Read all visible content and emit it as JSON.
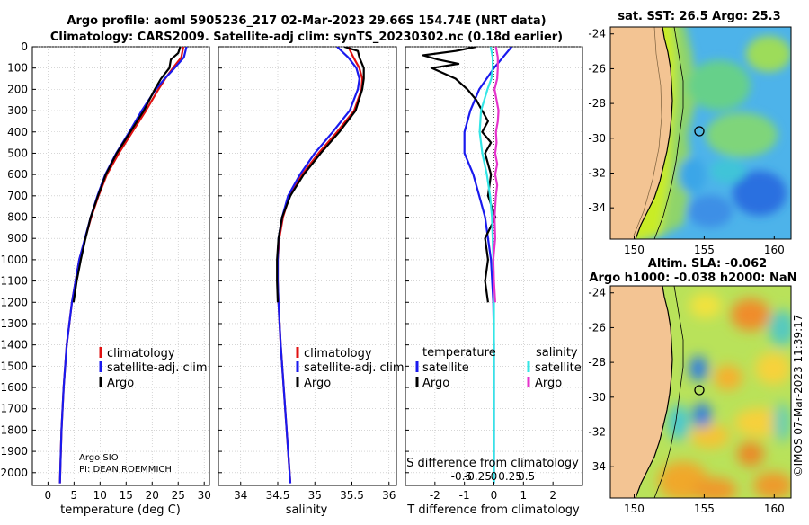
{
  "title": {
    "line1": "Argo profile: aoml 5905236_217 02-Mar-2023 29.66S 154.74E (NRT data)",
    "line2": "Climatology: CARS2009. Satellite-adj clim: synTS_20230302.nc (0.18d earlier)"
  },
  "credits": {
    "argo_center": "Argo SIO",
    "pi": "PI: DEAN ROEMMICH",
    "copyright": "©IMOS 07-Mar-2023 11:39:17"
  },
  "colors": {
    "climatology": "#e01010",
    "satellite_adj": "#1a1aee",
    "argo": "#000000",
    "sat_salinity": "#33e6e6",
    "argo_salinity": "#e633cc",
    "land": "#f3c493"
  },
  "chart_data": [
    {
      "type": "line",
      "name": "temperature",
      "xlabel": "temperature (deg C)",
      "ylabel": "",
      "xlim": [
        -3,
        31
      ],
      "ylim": [
        2060,
        0
      ],
      "xticks": [
        "0",
        "5",
        "10",
        "15",
        "20",
        "25",
        "30"
      ],
      "xtick_values": [
        0,
        5,
        10,
        15,
        20,
        25,
        30
      ],
      "yticks": [
        "0",
        "100",
        "200",
        "300",
        "400",
        "500",
        "600",
        "700",
        "800",
        "900",
        "1000",
        "1100",
        "1200",
        "1300",
        "1400",
        "1500",
        "1600",
        "1700",
        "1800",
        "1900",
        "2000"
      ],
      "ytick_values": [
        0,
        100,
        200,
        300,
        400,
        500,
        600,
        700,
        800,
        900,
        1000,
        1100,
        1200,
        1300,
        1400,
        1500,
        1600,
        1700,
        1800,
        1900,
        2000
      ],
      "legend": [
        "climatology",
        "satellite-adj. clim.",
        "Argo"
      ],
      "series": [
        {
          "name": "climatology",
          "depth": [
            0,
            50,
            100,
            150,
            200,
            300,
            400,
            500,
            600,
            700,
            800,
            1000,
            1200,
            1400,
            1600,
            1800,
            2000,
            2050
          ],
          "values": [
            26.0,
            25.6,
            24.0,
            22.5,
            21.2,
            18.8,
            16.2,
            13.6,
            11.3,
            9.7,
            8.3,
            6.0,
            4.6,
            3.6,
            3.0,
            2.6,
            2.35,
            2.3
          ]
        },
        {
          "name": "satellite-adj. clim.",
          "depth": [
            0,
            50,
            100,
            150,
            200,
            300,
            400,
            500,
            600,
            700,
            800,
            1000,
            1200,
            1400,
            1600,
            1800,
            2000,
            2050
          ],
          "values": [
            26.6,
            26.1,
            24.3,
            22.4,
            20.7,
            18.0,
            15.6,
            13.1,
            11.0,
            9.5,
            8.2,
            6.0,
            4.6,
            3.6,
            3.0,
            2.6,
            2.35,
            2.3
          ]
        },
        {
          "name": "Argo",
          "depth": [
            0,
            30,
            60,
            100,
            150,
            200,
            300,
            400,
            500,
            600,
            700,
            800,
            900,
            1000,
            1100,
            1200
          ],
          "values": [
            25.4,
            25.0,
            23.6,
            23.3,
            21.7,
            20.5,
            18.4,
            15.8,
            13.2,
            11.1,
            9.6,
            8.2,
            7.2,
            6.3,
            5.5,
            4.9
          ]
        }
      ]
    },
    {
      "type": "line",
      "name": "salinity",
      "xlabel": "salinity",
      "ylabel": "",
      "xlim": [
        33.7,
        36.1
      ],
      "ylim": [
        2060,
        0
      ],
      "xticks": [
        "34",
        "34.5",
        "35",
        "35.5",
        "36"
      ],
      "xtick_values": [
        34,
        34.5,
        35,
        35.5,
        36
      ],
      "legend": [
        "climatology",
        "satellite-adj. clim.",
        "Argo"
      ],
      "series": [
        {
          "name": "climatology",
          "depth": [
            0,
            50,
            100,
            150,
            200,
            300,
            400,
            500,
            600,
            700,
            800,
            900,
            1000,
            1100,
            1200,
            1400,
            1600,
            1800,
            2000,
            2050
          ],
          "values": [
            35.45,
            35.52,
            35.6,
            35.64,
            35.63,
            35.53,
            35.3,
            35.05,
            34.83,
            34.66,
            34.57,
            34.52,
            34.5,
            34.5,
            34.51,
            34.54,
            34.58,
            34.62,
            34.66,
            34.67
          ]
        },
        {
          "name": "satellite-adj. clim.",
          "depth": [
            0,
            50,
            100,
            150,
            200,
            300,
            400,
            500,
            600,
            700,
            800,
            900,
            1000,
            1100,
            1200,
            1400,
            1600,
            1800,
            2000,
            2050
          ],
          "values": [
            35.3,
            35.45,
            35.56,
            35.6,
            35.58,
            35.47,
            35.24,
            35.0,
            34.8,
            34.64,
            34.56,
            34.51,
            34.5,
            34.5,
            34.51,
            34.54,
            34.58,
            34.62,
            34.66,
            34.67
          ]
        },
        {
          "name": "Argo",
          "depth": [
            0,
            20,
            50,
            100,
            150,
            200,
            300,
            400,
            500,
            600,
            700,
            800,
            900,
            1000,
            1100,
            1200
          ],
          "values": [
            35.4,
            35.58,
            35.6,
            35.66,
            35.66,
            35.64,
            35.55,
            35.33,
            35.08,
            34.85,
            34.67,
            34.56,
            34.51,
            34.49,
            34.49,
            34.5
          ]
        }
      ]
    },
    {
      "type": "line",
      "name": "difference",
      "xlabel": "T difference from climatology",
      "xlabel_top": "S difference from climatology",
      "xlim": [
        -3,
        3
      ],
      "ylim": [
        2060,
        0
      ],
      "xticks": [
        "-2",
        "-1",
        "0",
        "1",
        "2"
      ],
      "xtick_values": [
        -2,
        -1,
        0,
        1,
        2
      ],
      "sticks": [
        "-0.5",
        "-0.25",
        "0",
        "0.25",
        "0.5"
      ],
      "stick_values": [
        -0.5,
        -0.25,
        0,
        0.25,
        0.5
      ],
      "legend_temperature": {
        "title": "temperature",
        "items": [
          "satellite",
          "Argo"
        ]
      },
      "legend_salinity": {
        "title": "salinity",
        "items": [
          "satellite",
          "Argo"
        ]
      },
      "series": [
        {
          "name": "temperature satellite",
          "depth": [
            0,
            50,
            100,
            200,
            300,
            400,
            500,
            600,
            700,
            800,
            900,
            1000,
            1200,
            1400,
            1600,
            1800,
            2000,
            2050
          ],
          "values": [
            0.6,
            0.3,
            0.0,
            -0.5,
            -0.8,
            -1.0,
            -1.0,
            -0.7,
            -0.5,
            -0.3,
            -0.2,
            -0.1,
            -0.02,
            0,
            0,
            0,
            0,
            0
          ]
        },
        {
          "name": "temperature Argo",
          "depth": [
            0,
            20,
            40,
            60,
            80,
            100,
            150,
            200,
            250,
            300,
            350,
            400,
            450,
            500,
            600,
            700,
            800,
            900,
            1000,
            1100,
            1200
          ],
          "values": [
            -0.6,
            -1.3,
            -2.4,
            -1.9,
            -1.2,
            -2.1,
            -1.3,
            -0.9,
            -0.6,
            -0.4,
            -0.2,
            -0.4,
            -0.1,
            -0.3,
            -0.1,
            -0.2,
            0.05,
            -0.3,
            -0.2,
            -0.3,
            -0.2
          ]
        },
        {
          "name": "salinity satellite",
          "depth": [
            0,
            50,
            100,
            150,
            200,
            300,
            400,
            500,
            600,
            700,
            800,
            900,
            1000,
            1200,
            1400,
            1600,
            1800,
            2000,
            2050
          ],
          "values": [
            -0.05,
            -0.02,
            -0.02,
            -0.04,
            -0.1,
            -0.2,
            -0.22,
            -0.18,
            -0.11,
            -0.06,
            -0.03,
            -0.02,
            -0.01,
            0,
            0,
            0,
            0,
            0,
            0
          ]
        },
        {
          "name": "salinity Argo",
          "depth": [
            0,
            50,
            100,
            150,
            200,
            250,
            300,
            350,
            400,
            450,
            500,
            550,
            600,
            650,
            700,
            800,
            900,
            1000,
            1100,
            1200
          ],
          "values": [
            0.03,
            0.06,
            0.06,
            0.05,
            0.01,
            0.04,
            0.07,
            0.06,
            0.03,
            0.04,
            0.02,
            0.05,
            0.02,
            0.05,
            0.03,
            0.01,
            0.02,
            -0.01,
            0.0,
            0.02
          ]
        }
      ]
    },
    {
      "type": "heatmap",
      "name": "sst_map",
      "title": "sat. SST: 26.5 Argo: 25.3",
      "xticks": [
        "150",
        "155",
        "160"
      ],
      "xtick_values": [
        150,
        155,
        160
      ],
      "yticks": [
        "-24",
        "-26",
        "-28",
        "-30",
        "-32",
        "-34"
      ],
      "ytick_values": [
        -24,
        -26,
        -28,
        -30,
        -32,
        -34
      ],
      "xlim": [
        148.3,
        161.2
      ],
      "ylim": [
        -35.8,
        -23.6
      ],
      "marker": {
        "lon": 154.74,
        "lat": -29.66
      }
    },
    {
      "type": "heatmap",
      "name": "sla_map",
      "title": "Altim. SLA: -0.062",
      "subtitle": "Argo h1000: -0.038 h2000: NaN",
      "xticks": [
        "150",
        "155",
        "160"
      ],
      "xtick_values": [
        150,
        155,
        160
      ],
      "yticks": [
        "-24",
        "-26",
        "-28",
        "-30",
        "-32",
        "-34"
      ],
      "ytick_values": [
        -24,
        -26,
        -28,
        -30,
        -32,
        -34
      ],
      "xlim": [
        148.3,
        161.2
      ],
      "ylim": [
        -35.8,
        -23.6
      ],
      "marker": {
        "lon": 154.74,
        "lat": -29.66
      }
    }
  ]
}
